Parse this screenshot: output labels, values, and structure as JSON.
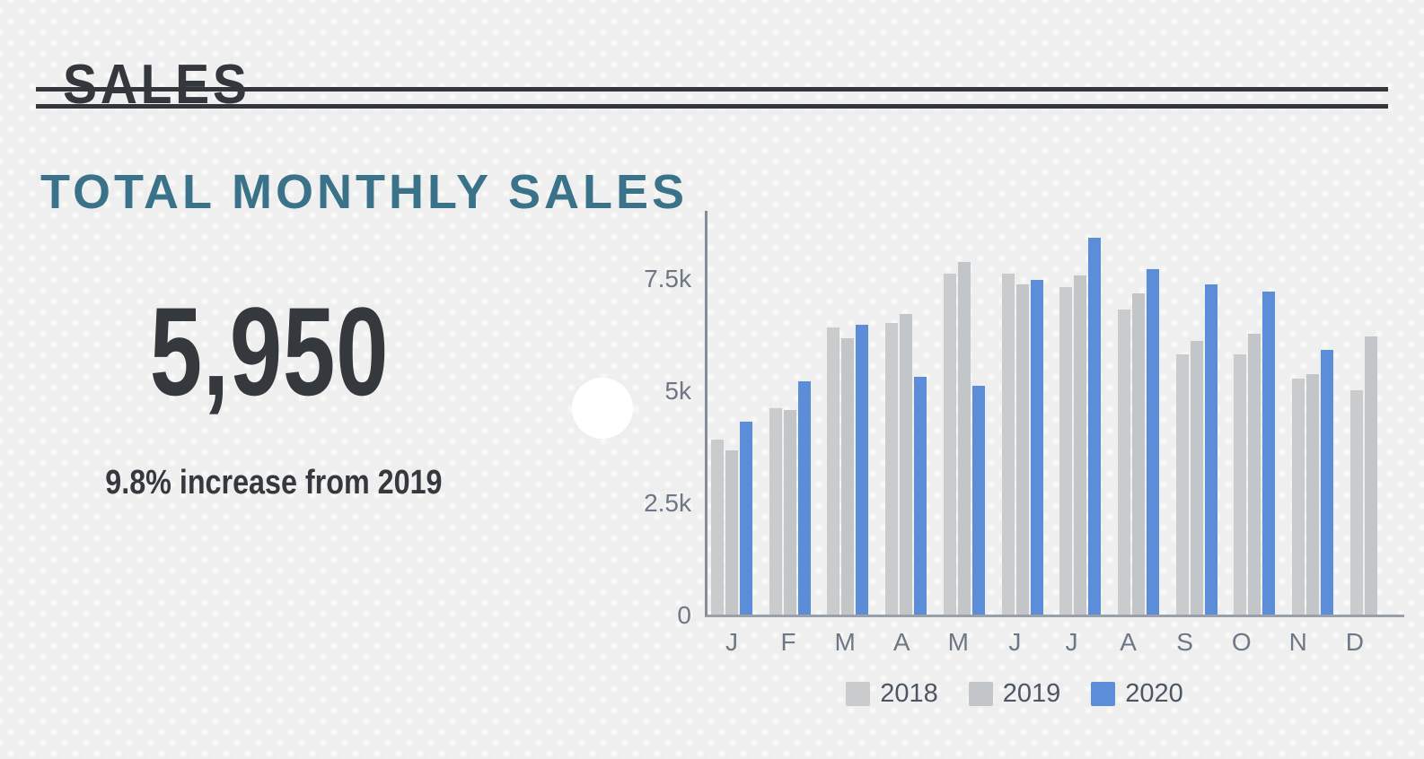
{
  "header": {
    "title": "SALES"
  },
  "section": {
    "title": "TOTAL MONTHLY SALES"
  },
  "stat": {
    "value": "5,950",
    "caption": "9.8% increase from 2019"
  },
  "colors": {
    "heading_text": "#34383d",
    "accent_teal": "#3a7389",
    "stat_text": "#35393e",
    "axis": "#8f949b",
    "tick_label": "#6e7784",
    "legend_label": "#4e5663",
    "series_2018": "#c9cbcd",
    "series_2019": "#c3c6c8",
    "series_2020": "#5b8dd9"
  },
  "chart_data": {
    "type": "bar",
    "title": "TOTAL MONTHLY SALES",
    "categories": [
      "J",
      "F",
      "M",
      "A",
      "M",
      "J",
      "J",
      "A",
      "S",
      "O",
      "N",
      "D"
    ],
    "series": [
      {
        "name": "2018",
        "color": "#c9cbcd",
        "values": [
          3900,
          4600,
          6400,
          6500,
          7600,
          7600,
          7300,
          6800,
          5800,
          5800,
          5250,
          5000
        ]
      },
      {
        "name": "2019",
        "color": "#c3c6c8",
        "values": [
          3650,
          4550,
          6150,
          6700,
          7850,
          7350,
          7550,
          7150,
          6100,
          6250,
          5350,
          6200
        ]
      },
      {
        "name": "2020",
        "color": "#5b8dd9",
        "values": [
          4300,
          5200,
          6450,
          5300,
          5100,
          7450,
          8400,
          7700,
          7350,
          7200,
          5900,
          null
        ]
      }
    ],
    "xlabel": "",
    "ylabel": "",
    "ylim": [
      0,
      9000
    ],
    "yticks": [
      {
        "label": "0",
        "value": 0
      },
      {
        "label": "2.5k",
        "value": 2500
      },
      {
        "label": "5k",
        "value": 5000
      },
      {
        "label": "7.5k",
        "value": 7500
      }
    ],
    "grid": false,
    "legend_position": "bottom"
  }
}
